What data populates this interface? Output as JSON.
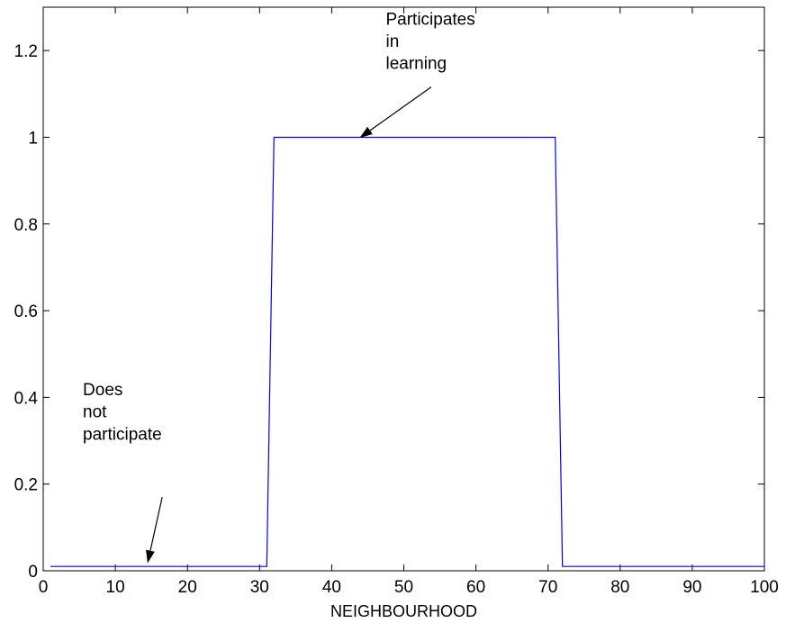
{
  "chart_data": {
    "type": "line",
    "title": "",
    "xlabel": "NEIGHBOURHOOD",
    "ylabel": "",
    "xlim": [
      0,
      100
    ],
    "ylim": [
      0,
      1.3
    ],
    "xticks": [
      0,
      10,
      20,
      30,
      40,
      50,
      60,
      70,
      80,
      90,
      100
    ],
    "yticks": [
      0,
      0.2,
      0.4,
      0.6,
      0.8,
      1,
      1.2
    ],
    "xtick_labels": [
      "0",
      "10",
      "20",
      "30",
      "40",
      "50",
      "60",
      "70",
      "80",
      "90",
      "100"
    ],
    "ytick_labels": [
      "0",
      "0.2",
      "0.4",
      "0.6",
      "0.8",
      "1",
      "1.2"
    ],
    "grid": false,
    "series": [
      {
        "color": "#0000ff",
        "x": [
          1,
          31,
          32,
          71,
          72,
          100
        ],
        "y": [
          0.01,
          0.01,
          1,
          1,
          0.01,
          0.01
        ]
      }
    ],
    "annotations": [
      {
        "lines": [
          "Participates",
          "in",
          "learning"
        ],
        "text_x": 47.5,
        "text_y": 1.26,
        "arrow_from": [
          53.8,
          1.116
        ],
        "arrow_to": [
          44,
          1.0
        ]
      },
      {
        "lines": [
          "Does",
          "not",
          "participate"
        ],
        "text_x": 5.5,
        "text_y": 0.405,
        "arrow_from": [
          16.5,
          0.17
        ],
        "arrow_to": [
          14.5,
          0.02
        ]
      }
    ]
  }
}
